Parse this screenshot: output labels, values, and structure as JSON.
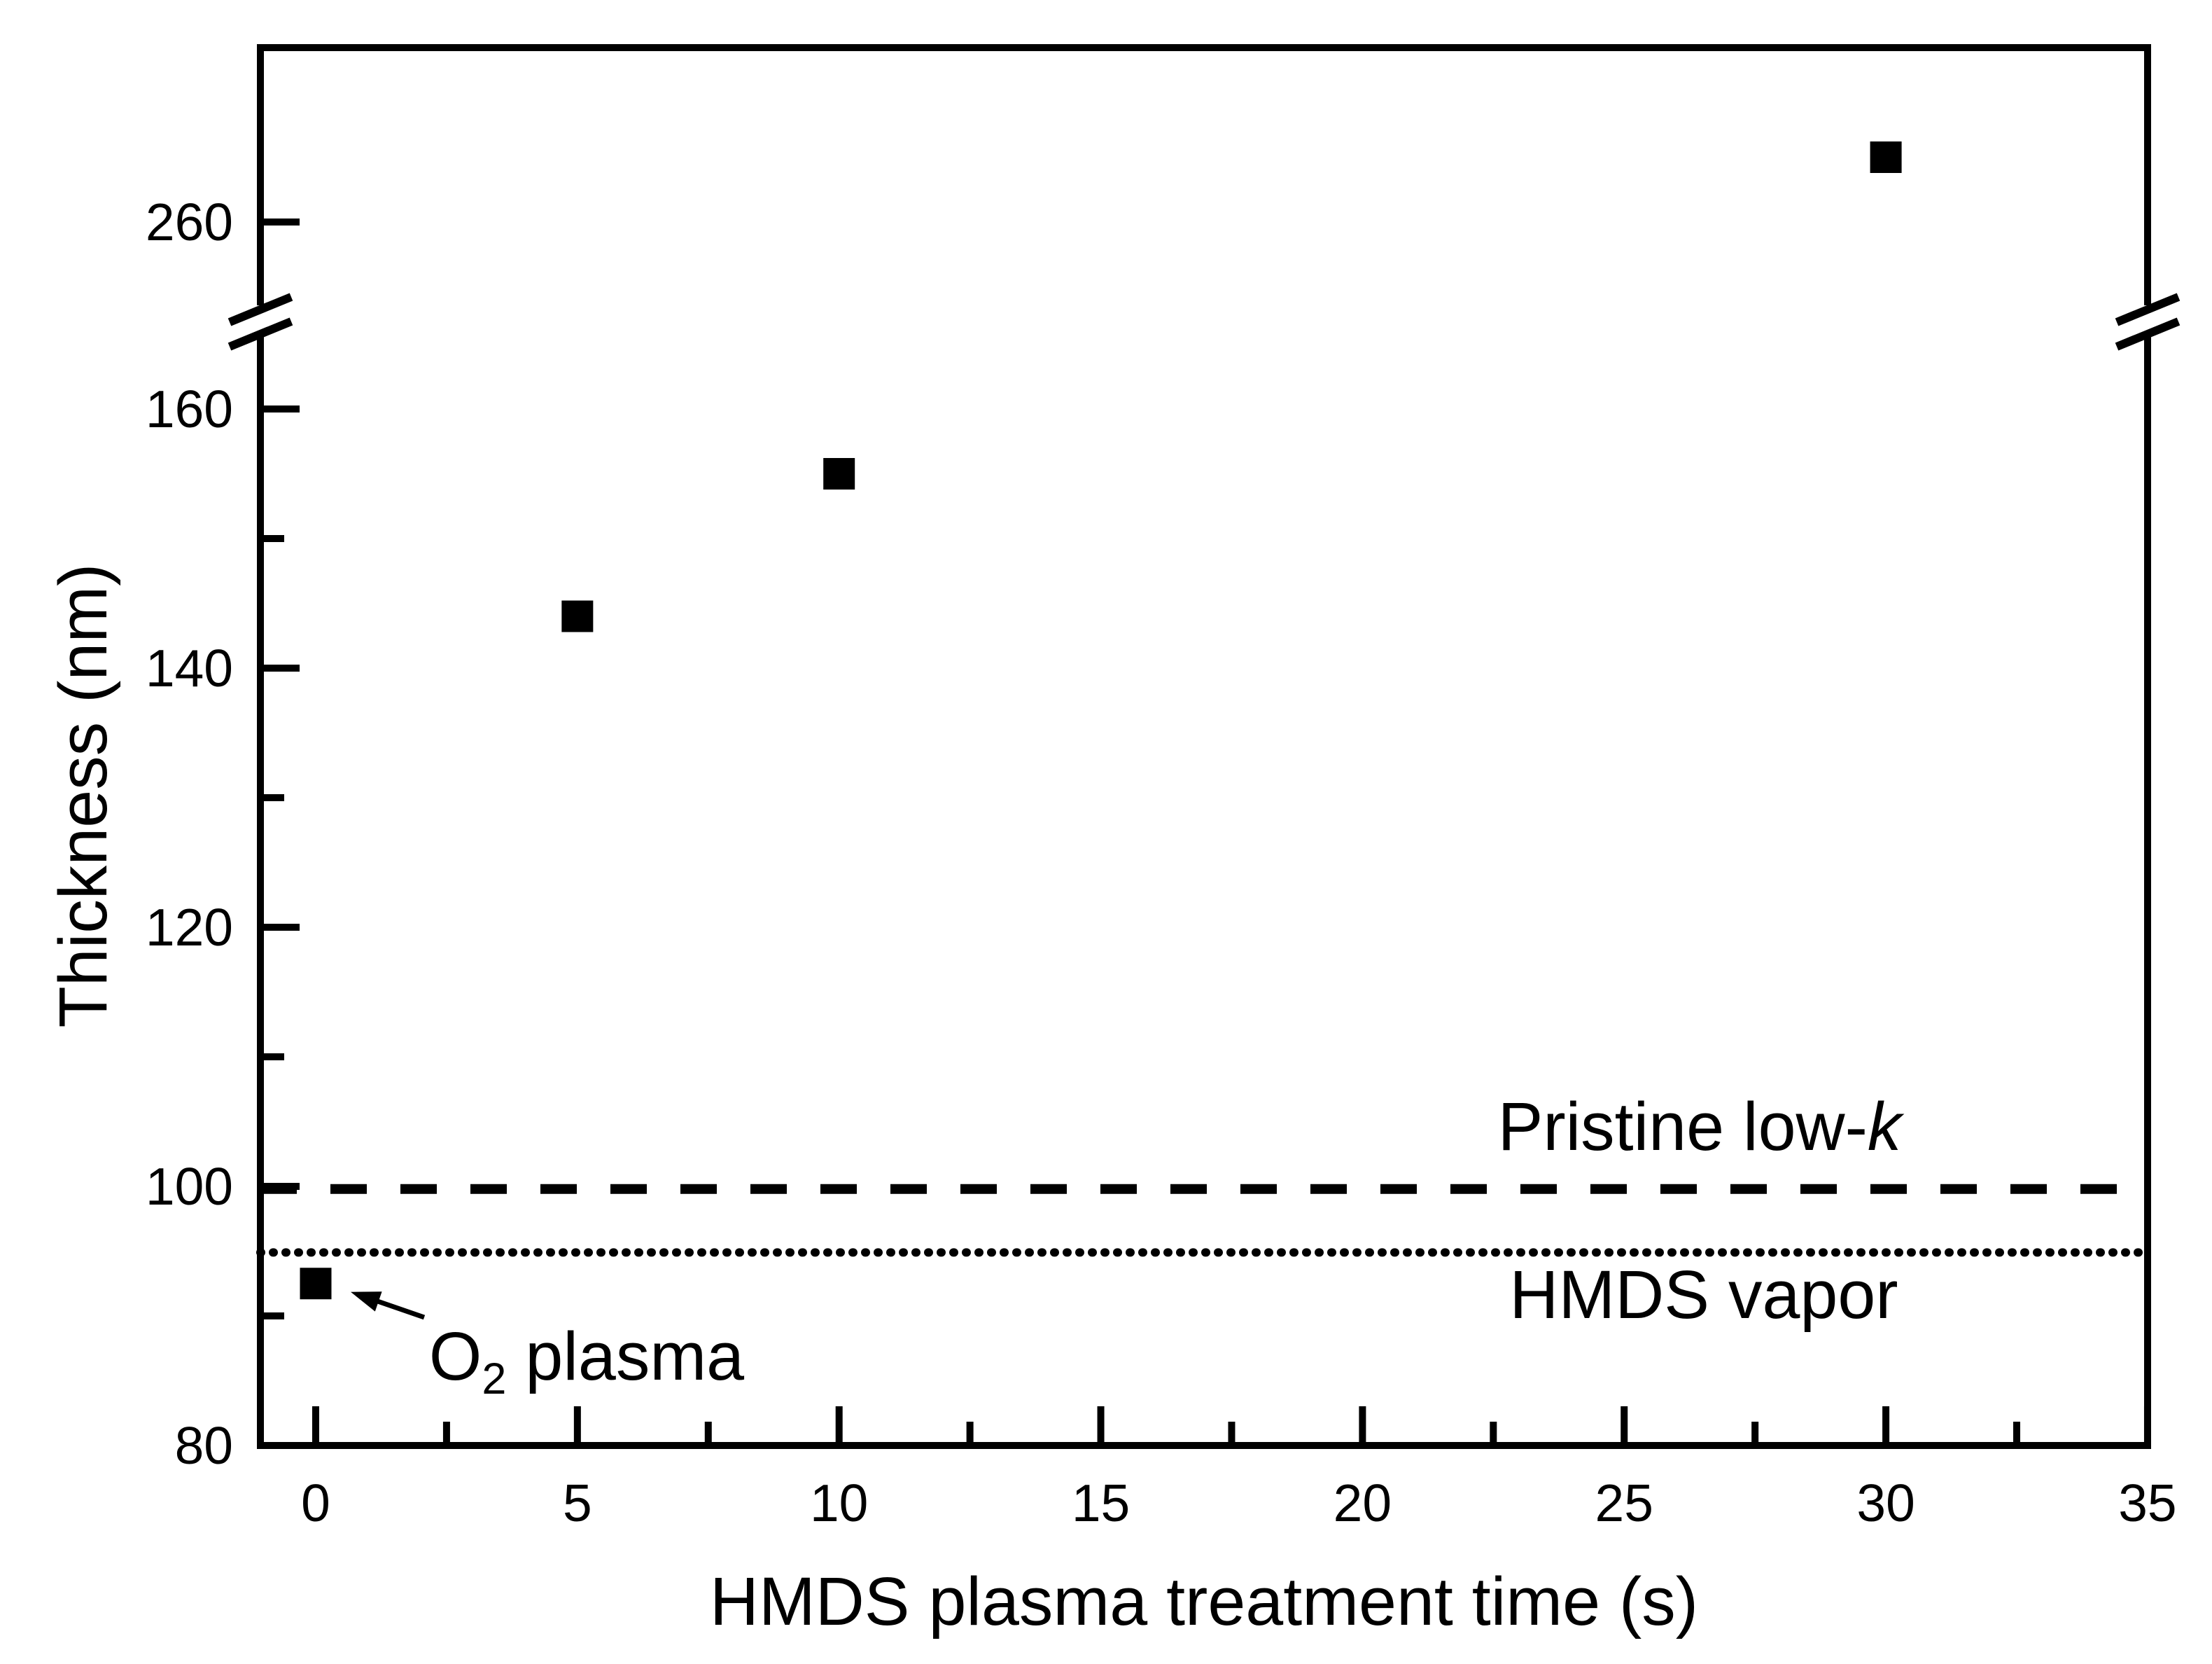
{
  "chart_data": {
    "type": "scatter",
    "title": "",
    "xlabel": "HMDS plasma treatment time (s)",
    "ylabel": "Thickness (nm)",
    "x_major_ticks": [
      0,
      5,
      10,
      15,
      20,
      25,
      30,
      35
    ],
    "x_minor_ticks": [
      2.5,
      7.5,
      12.5,
      17.5,
      22.5,
      27.5,
      32.5
    ],
    "xlim": [
      -1.1,
      35
    ],
    "x_unit": "s",
    "y_unit": "nm",
    "y_axis": {
      "break": true,
      "lower_segment": {
        "range": [
          80,
          167
        ],
        "major_ticks": [
          80,
          100,
          120,
          140,
          160
        ],
        "minor_ticks": [
          90,
          110,
          130,
          150
        ]
      },
      "upper_segment": {
        "range": [
          251,
          273
        ],
        "major_ticks": [
          260
        ],
        "minor_ticks": []
      }
    },
    "series": [
      {
        "marker": "filled-square",
        "color": "#000000",
        "points": [
          {
            "x": 0,
            "y": 92.5
          },
          {
            "x": 5,
            "y": 144
          },
          {
            "x": 10,
            "y": 155
          },
          {
            "x": 30,
            "y": 265
          }
        ]
      }
    ],
    "reference_lines": [
      {
        "id": "pristine",
        "label_text": "Pristine low-",
        "label_italic_suffix": "k",
        "style": "dashed",
        "y": 99.8
      },
      {
        "id": "hmds-vapor",
        "label_text": "HMDS vapor",
        "label_italic_suffix": "",
        "style": "dotted",
        "y": 94.9
      }
    ],
    "annotations": [
      {
        "id": "o2-plasma",
        "prefix": "O",
        "subscript": "2",
        "suffix": " plasma",
        "has_arrow": true,
        "arrow_to_point": {
          "x": 0,
          "y": 92.5
        }
      }
    ],
    "grid": false,
    "legend": "none",
    "colors": {
      "foreground": "#000000",
      "background": "#ffffff"
    }
  }
}
